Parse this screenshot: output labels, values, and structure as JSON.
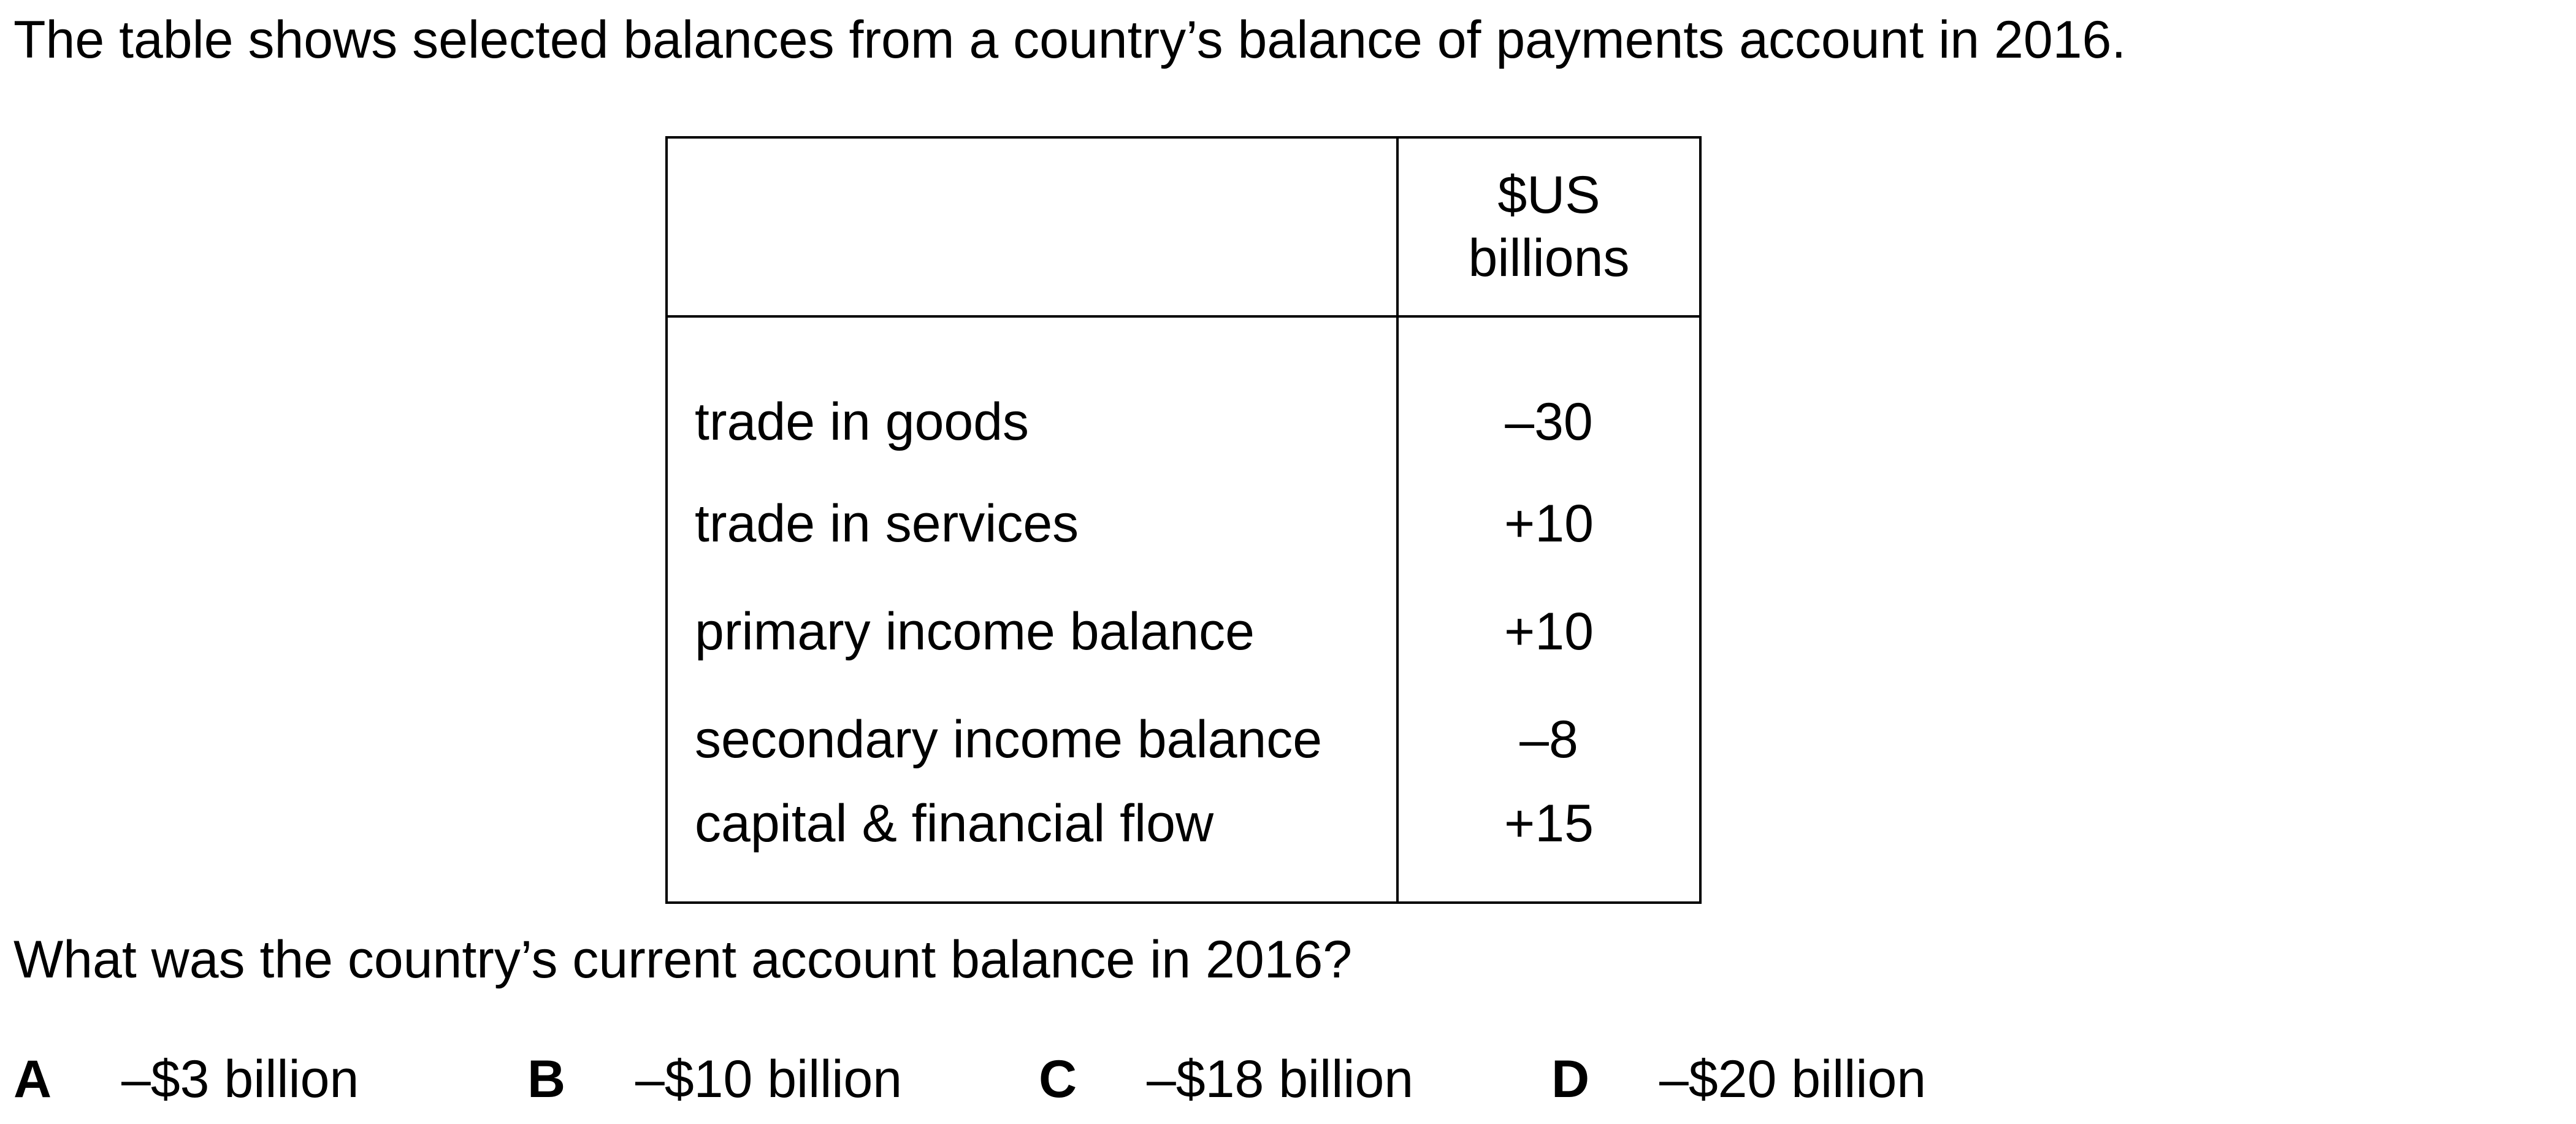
{
  "intro": "The table shows selected balances from a country’s balance of payments account in 2016.",
  "table": {
    "header_label": "",
    "header_unit_line1": "$US",
    "header_unit_line2": "billions",
    "rows": [
      {
        "label": "trade in goods",
        "value": "–30"
      },
      {
        "label": "trade in services",
        "value": "+10"
      },
      {
        "label": "primary income balance",
        "value": "+10"
      },
      {
        "label": "secondary income balance",
        "value": "–8"
      },
      {
        "label": "capital & financial flow",
        "value": "+15"
      }
    ]
  },
  "question": "What was the country’s current account balance in 2016?",
  "options": [
    {
      "letter": "A",
      "text": "–$3 billion"
    },
    {
      "letter": "B",
      "text": "–$10 billion"
    },
    {
      "letter": "C",
      "text": "–$18 billion"
    },
    {
      "letter": "D",
      "text": "–$20 billion"
    }
  ]
}
